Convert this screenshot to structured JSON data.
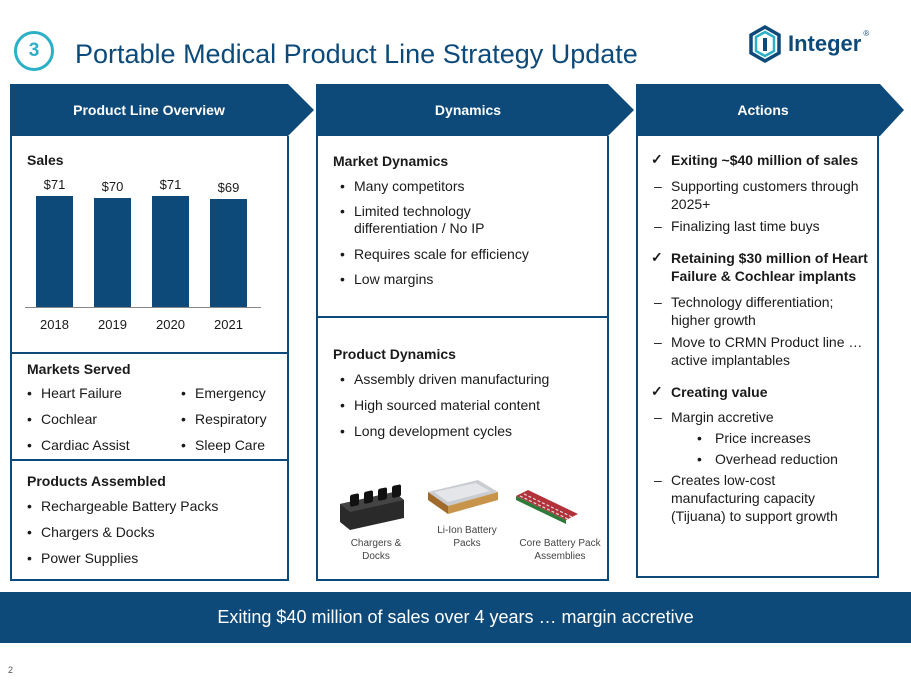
{
  "slide": {
    "badge_number": "3",
    "title": "Portable Medical Product Line Strategy Update",
    "logo_text": "Integer",
    "logo_reg": "®",
    "page_number": "2",
    "footer_text": "Exiting $40 million of sales over 4 years … margin accretive"
  },
  "headers": {
    "col1": "Product Line Overview",
    "col2": "Dynamics",
    "col3": "Actions"
  },
  "overview": {
    "sales_title": "Sales",
    "markets_title": "Markets Served",
    "markets_left": [
      "Heart Failure",
      "Cochlear",
      "Cardiac Assist"
    ],
    "markets_right": [
      "Emergency",
      "Respiratory",
      "Sleep Care"
    ],
    "products_title": "Products Assembled",
    "products": [
      "Rechargeable Battery Packs",
      "Chargers & Docks",
      "Power Supplies"
    ]
  },
  "chart_data": {
    "type": "bar",
    "title": "Sales",
    "categories": [
      "2018",
      "2019",
      "2020",
      "2021"
    ],
    "values": [
      71,
      70,
      71,
      69
    ],
    "value_labels": [
      "$71",
      "$70",
      "$71",
      "$69"
    ],
    "ylim": [
      0,
      80
    ],
    "color": "#0d4a7a"
  },
  "dynamics": {
    "market_title": "Market Dynamics",
    "market_items": [
      "Many competitors",
      "Limited technology differentiation / No IP",
      "Requires scale for efficiency",
      "Low margins"
    ],
    "product_title": "Product Dynamics",
    "product_items": [
      "Assembly driven manufacturing",
      "High sourced material content",
      "Long development cycles"
    ],
    "image_captions": [
      "Chargers & Docks",
      "Li-Ion Battery Packs",
      "Core Battery Pack Assemblies"
    ]
  },
  "actions": {
    "check_mark": "✓",
    "dash": "–",
    "bullet": "•",
    "a1_title": "Exiting ~$40 million of sales",
    "a1_items": [
      "Supporting customers through 2025+",
      "Finalizing last time buys"
    ],
    "a2_title": "Retaining $30 million of Heart Failure & Cochlear implants",
    "a2_items": [
      "Technology differentiation; higher growth",
      "Move to CRMN Product line … active implantables"
    ],
    "a3_title": "Creating value",
    "a3_dash1": "Margin accretive",
    "a3_sub": [
      "Price increases",
      "Overhead reduction"
    ],
    "a3_dash2": "Creates low-cost manufacturing capacity (Tijuana) to support growth"
  },
  "colors": {
    "navy": "#0d4a7a",
    "teal": "#2bb0c8"
  }
}
